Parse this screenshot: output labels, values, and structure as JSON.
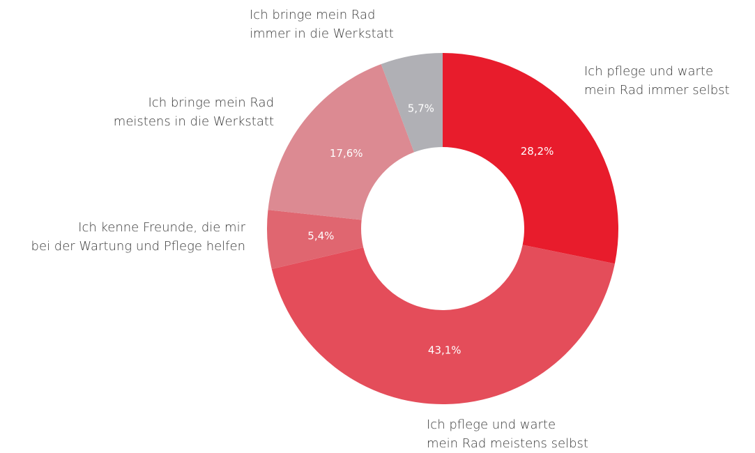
{
  "chart_data": {
    "type": "donut",
    "categories": [
      "Ich pflege und warte\nmein Rad immer selbst",
      "Ich pflege und warte\nmein Rad meistens selbst",
      "Ich kenne Freunde, die mir\nbei der Wartung und Pflege helfen",
      "Ich bringe mein Rad\nmeistens in die Werkstatt",
      "Ich bringe mein Rad\nimmer in die Werkstatt"
    ],
    "values": [
      28.2,
      43.1,
      5.4,
      17.6,
      5.7
    ],
    "value_labels": [
      "28,2%",
      "43,1%",
      "5,4%",
      "17,6%",
      "5,7%"
    ],
    "colors": [
      "#e81c2c",
      "#e44d5a",
      "#e06670",
      "#dc8a92",
      "#b0b0b5"
    ]
  }
}
